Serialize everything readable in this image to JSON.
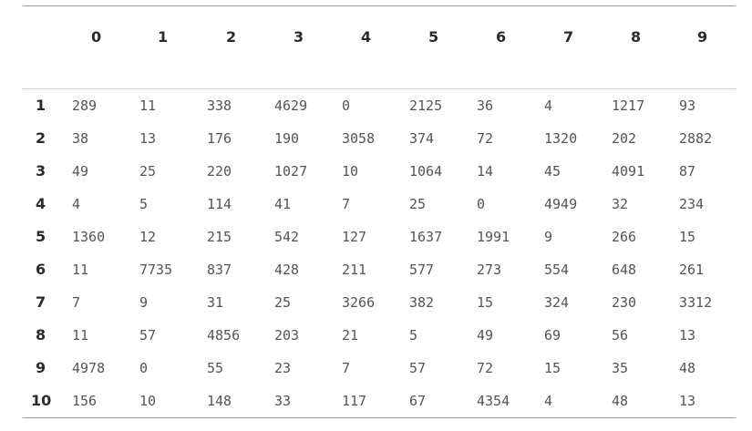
{
  "table": {
    "columns": [
      "0",
      "1",
      "2",
      "3",
      "4",
      "5",
      "6",
      "7",
      "8",
      "9"
    ],
    "rows": [
      {
        "label": "1",
        "values": [
          "289",
          "11",
          "338",
          "4629",
          "0",
          "2125",
          "36",
          "4",
          "1217",
          "93"
        ]
      },
      {
        "label": "2",
        "values": [
          "38",
          "13",
          "176",
          "190",
          "3058",
          "374",
          "72",
          "1320",
          "202",
          "2882"
        ]
      },
      {
        "label": "3",
        "values": [
          "49",
          "25",
          "220",
          "1027",
          "10",
          "1064",
          "14",
          "45",
          "4091",
          "87"
        ]
      },
      {
        "label": "4",
        "values": [
          "4",
          "5",
          "114",
          "41",
          "7",
          "25",
          "0",
          "4949",
          "32",
          "234"
        ]
      },
      {
        "label": "5",
        "values": [
          "1360",
          "12",
          "215",
          "542",
          "127",
          "1637",
          "1991",
          "9",
          "266",
          "15"
        ]
      },
      {
        "label": "6",
        "values": [
          "11",
          "7735",
          "837",
          "428",
          "211",
          "577",
          "273",
          "554",
          "648",
          "261"
        ]
      },
      {
        "label": "7",
        "values": [
          "7",
          "9",
          "31",
          "25",
          "3266",
          "382",
          "15",
          "324",
          "230",
          "3312"
        ]
      },
      {
        "label": "8",
        "values": [
          "11",
          "57",
          "4856",
          "203",
          "21",
          "5",
          "49",
          "69",
          "56",
          "13"
        ]
      },
      {
        "label": "9",
        "values": [
          "4978",
          "0",
          "55",
          "23",
          "7",
          "57",
          "72",
          "15",
          "35",
          "48"
        ]
      },
      {
        "label": "10",
        "values": [
          "156",
          "10",
          "148",
          "33",
          "117",
          "67",
          "4354",
          "4",
          "48",
          "13"
        ]
      }
    ]
  }
}
